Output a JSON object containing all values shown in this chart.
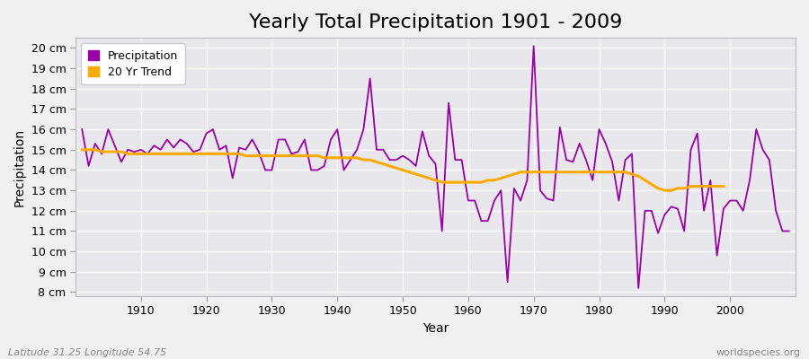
{
  "title": "Yearly Total Precipitation 1901 - 2009",
  "xlabel": "Year",
  "ylabel": "Precipitation",
  "fig_bg_color": "#f0f0f0",
  "plot_bg_color": "#e8e8ec",
  "grid_color": "#ffffff",
  "years": [
    1901,
    1902,
    1903,
    1904,
    1905,
    1906,
    1907,
    1908,
    1909,
    1910,
    1911,
    1912,
    1913,
    1914,
    1915,
    1916,
    1917,
    1918,
    1919,
    1920,
    1921,
    1922,
    1923,
    1924,
    1925,
    1926,
    1927,
    1928,
    1929,
    1930,
    1931,
    1932,
    1933,
    1934,
    1935,
    1936,
    1937,
    1938,
    1939,
    1940,
    1941,
    1942,
    1943,
    1944,
    1945,
    1946,
    1947,
    1948,
    1949,
    1950,
    1951,
    1952,
    1953,
    1954,
    1955,
    1956,
    1957,
    1958,
    1959,
    1960,
    1961,
    1962,
    1963,
    1964,
    1965,
    1966,
    1967,
    1968,
    1969,
    1970,
    1971,
    1972,
    1973,
    1974,
    1975,
    1976,
    1977,
    1978,
    1979,
    1980,
    1981,
    1982,
    1983,
    1984,
    1985,
    1986,
    1987,
    1988,
    1989,
    1990,
    1991,
    1992,
    1993,
    1994,
    1995,
    1996,
    1997,
    1998,
    1999,
    2000,
    2001,
    2002,
    2003,
    2004,
    2005,
    2006,
    2007,
    2008,
    2009
  ],
  "precip": [
    16.0,
    14.2,
    15.3,
    14.8,
    16.0,
    15.2,
    14.4,
    15.0,
    14.9,
    15.0,
    14.8,
    15.2,
    15.0,
    15.5,
    15.1,
    15.5,
    15.3,
    14.9,
    15.0,
    15.8,
    16.0,
    15.0,
    15.2,
    13.6,
    15.1,
    15.0,
    15.5,
    14.9,
    14.0,
    14.0,
    15.5,
    15.5,
    14.8,
    14.9,
    15.5,
    14.0,
    14.0,
    14.2,
    15.5,
    16.0,
    14.0,
    14.5,
    15.0,
    16.0,
    18.5,
    15.0,
    15.0,
    14.5,
    14.5,
    14.7,
    14.5,
    14.2,
    15.9,
    14.7,
    14.3,
    11.0,
    17.3,
    14.5,
    14.5,
    12.5,
    12.5,
    11.5,
    11.5,
    12.5,
    13.0,
    8.5,
    13.1,
    12.5,
    13.5,
    20.1,
    13.0,
    12.6,
    12.5,
    16.1,
    14.5,
    14.4,
    15.3,
    14.5,
    13.5,
    16.0,
    15.3,
    14.4,
    12.5,
    14.5,
    14.8,
    8.2,
    12.0,
    12.0,
    10.9,
    11.8,
    12.2,
    12.1,
    11.0,
    15.0,
    15.8,
    12.0,
    13.5,
    9.8,
    12.1,
    12.5,
    12.5,
    12.0,
    13.5,
    16.0,
    15.0,
    14.5,
    12.0,
    11.0,
    11.0
  ],
  "trend": [
    15.0,
    15.0,
    15.0,
    14.9,
    14.9,
    14.9,
    14.9,
    14.8,
    14.8,
    14.8,
    14.8,
    14.8,
    14.8,
    14.8,
    14.8,
    14.8,
    14.8,
    14.8,
    14.8,
    14.8,
    14.8,
    14.8,
    14.8,
    14.8,
    14.8,
    14.7,
    14.7,
    14.7,
    14.7,
    14.7,
    14.7,
    14.7,
    14.7,
    14.7,
    14.7,
    14.7,
    14.7,
    14.6,
    14.6,
    14.6,
    14.6,
    14.6,
    14.6,
    14.5,
    14.5,
    14.4,
    14.3,
    14.2,
    14.1,
    14.0,
    13.9,
    13.8,
    13.7,
    13.6,
    13.5,
    13.4,
    13.4,
    13.4,
    13.4,
    13.4,
    13.4,
    13.4,
    13.5,
    13.5,
    13.6,
    13.7,
    13.8,
    13.9,
    13.9,
    13.9,
    13.9,
    13.9,
    13.9,
    13.9,
    13.9,
    13.9,
    13.9,
    13.9,
    13.9,
    13.9,
    13.9,
    13.9,
    13.9,
    13.9,
    13.8,
    13.7,
    13.5,
    13.3,
    13.1,
    13.0,
    13.0,
    13.1,
    13.1,
    13.2,
    13.2,
    13.2,
    13.2,
    13.2,
    13.2
  ],
  "precip_color": "#9900aa",
  "trend_color": "#ffaa00",
  "yticks": [
    8,
    9,
    10,
    11,
    12,
    13,
    14,
    15,
    16,
    17,
    18,
    19,
    20
  ],
  "ylim": [
    7.8,
    20.5
  ],
  "xlim": [
    1900,
    2010
  ],
  "xticks": [
    1910,
    1920,
    1930,
    1940,
    1950,
    1960,
    1970,
    1980,
    1990,
    2000
  ],
  "legend_labels": [
    "Precipitation",
    "20 Yr Trend"
  ],
  "footer_left": "Latitude 31.25 Longitude 54.75",
  "footer_right": "worldspecies.org",
  "title_fontsize": 16,
  "axis_label_fontsize": 10,
  "tick_fontsize": 9,
  "legend_fontsize": 9
}
